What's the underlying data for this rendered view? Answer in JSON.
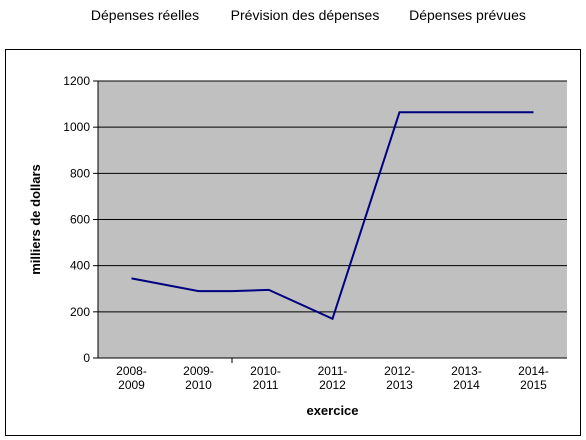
{
  "phases": [
    "Dépenses réelles",
    "Prévision des dépenses",
    "Dépenses prévues"
  ],
  "chart_data": {
    "type": "line",
    "xlabel": "exercice",
    "ylabel": "milliers de dollars",
    "categories": [
      "2008-2009",
      "2009-2010",
      "2010-2011",
      "2011-2012",
      "2012-2013",
      "2013-2014",
      "2014-2015"
    ],
    "x_points": [
      0,
      1,
      1.5,
      2.05,
      3,
      4,
      5,
      6
    ],
    "y_points": [
      345,
      290,
      290,
      295,
      170,
      1065,
      1065,
      1065
    ],
    "ylim": [
      0,
      1200
    ],
    "yticks": [
      0,
      200,
      400,
      600,
      800,
      1000,
      1200
    ],
    "grid": true,
    "plot_background": "#c0c0c0",
    "line_color": "#000080"
  }
}
